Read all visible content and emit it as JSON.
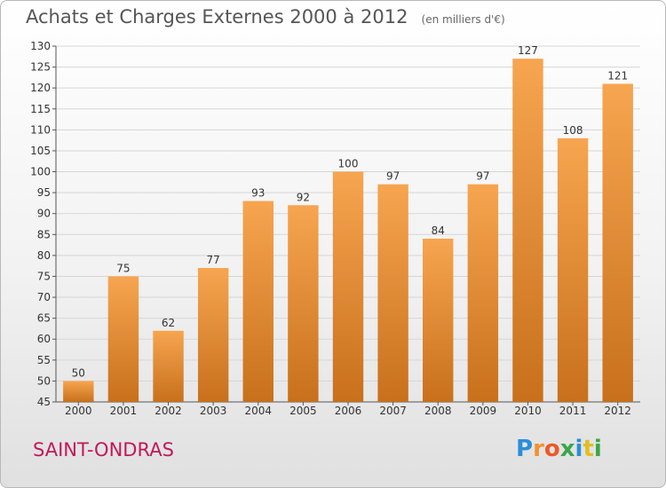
{
  "header": {
    "title": "Achats et Charges Externes 2000 à 2012",
    "unit": "(en milliers d'€)"
  },
  "commune": "SAINT-ONDRAS",
  "brand": {
    "letters": [
      "P",
      "r",
      "o",
      "x",
      "i",
      "t",
      "i"
    ],
    "colors": [
      "#2a8fd8",
      "#f2922e",
      "#ea5a2a",
      "#3aa64a",
      "#2a8fd8",
      "#e0c020",
      "#3aa64a"
    ]
  },
  "colors": {
    "bar_top": "#f7a550",
    "bar_bottom": "#c8701c",
    "grid": "#d6d6d6"
  },
  "chart_data": {
    "type": "bar",
    "categories": [
      "2000",
      "2001",
      "2002",
      "2003",
      "2004",
      "2005",
      "2006",
      "2007",
      "2008",
      "2009",
      "2010",
      "2011",
      "2012"
    ],
    "values": [
      50,
      75,
      62,
      77,
      93,
      92,
      100,
      97,
      84,
      97,
      127,
      108,
      121
    ],
    "title": "Achats et Charges Externes 2000 à 2012",
    "xlabel": "",
    "ylabel": "",
    "ylim": [
      45,
      130
    ],
    "yticks": [
      45,
      50,
      55,
      60,
      65,
      70,
      75,
      80,
      85,
      90,
      95,
      100,
      105,
      110,
      115,
      120,
      125,
      130
    ],
    "grid": true,
    "legend": "none"
  }
}
